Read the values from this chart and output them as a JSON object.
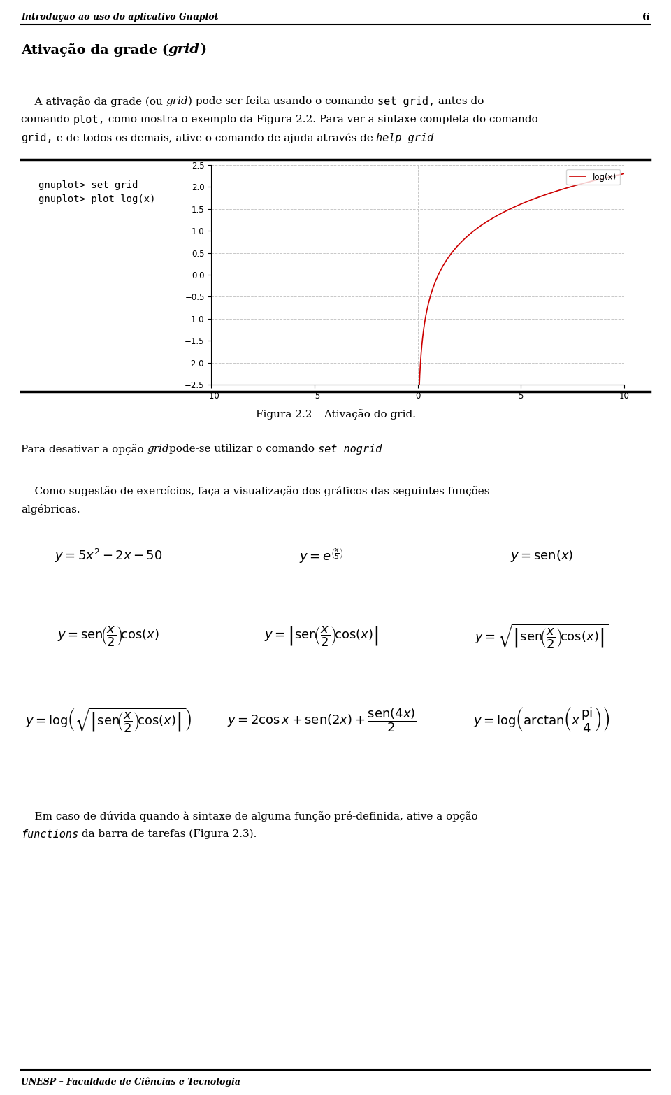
{
  "page_title": "Introdução ao uso do aplicativo Gnuplot",
  "page_number": "6",
  "footer": "UNESP – Faculdade de Ciências e Tecnologia",
  "bg_color": "#ffffff",
  "plot_line_color": "#cc0000",
  "grid_color": "#c8c8c8"
}
